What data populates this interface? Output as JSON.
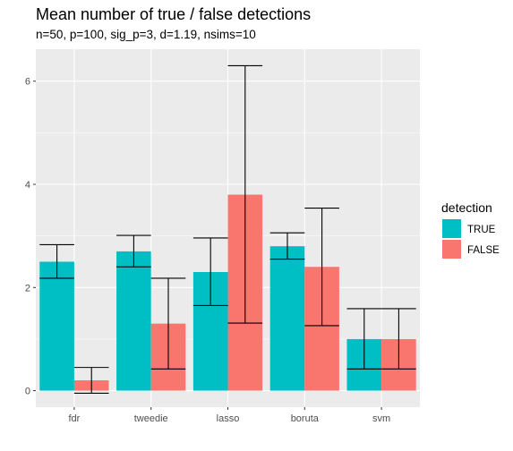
{
  "chart_data": {
    "type": "bar",
    "title": "Mean number of true / false detections",
    "subtitle": "n=50, p=100, sig_p=3, d=1.19, nsims=10",
    "xlabel": "",
    "ylabel": "",
    "categories": [
      "fdr",
      "tweedie",
      "lasso",
      "boruta",
      "svm"
    ],
    "ylim": [
      -0.32,
      6.62
    ],
    "yticks": [
      0,
      2,
      4,
      6
    ],
    "grid": true,
    "legend": {
      "title": "detection",
      "position": "right"
    },
    "series": [
      {
        "name": "TRUE",
        "color": "#00BFC4",
        "values": [
          2.5,
          2.7,
          2.3,
          2.8,
          1.0
        ],
        "error_low": [
          2.18,
          2.4,
          1.65,
          2.55,
          0.42
        ],
        "error_high": [
          2.83,
          3.01,
          2.96,
          3.06,
          1.59
        ]
      },
      {
        "name": "FALSE",
        "color": "#F8766D",
        "values": [
          0.2,
          1.3,
          3.8,
          2.4,
          1.0
        ],
        "error_low": [
          -0.05,
          0.42,
          1.31,
          1.26,
          0.42
        ],
        "error_high": [
          0.45,
          2.18,
          6.3,
          3.54,
          1.59
        ]
      }
    ]
  }
}
